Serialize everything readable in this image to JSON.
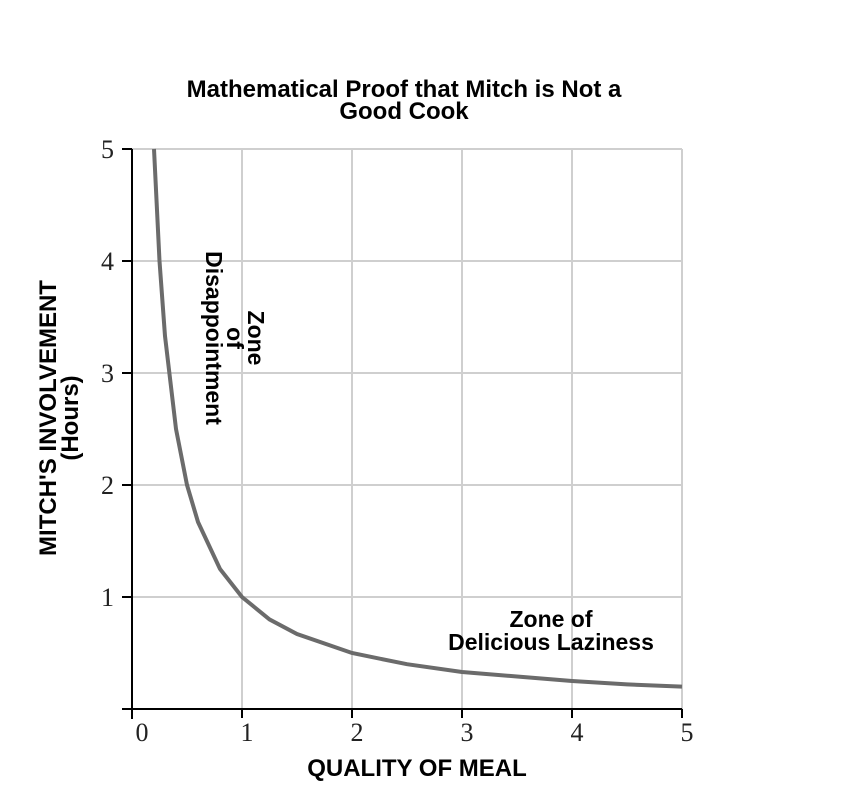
{
  "chart_data": {
    "type": "line",
    "title_lines": [
      "Mathematical Proof that Mitch is Not a",
      "Good Cook"
    ],
    "xlabel": "QUALITY OF MEAL",
    "ylabel_lines": [
      "MITCH'S INVOLVEMENT",
      "(Hours)"
    ],
    "xlim": [
      0,
      5
    ],
    "ylim": [
      0,
      5
    ],
    "xticks": [
      "0",
      "1",
      "2",
      "3",
      "4",
      "5"
    ],
    "yticks": [
      "1",
      "2",
      "3",
      "4",
      "5"
    ],
    "grid": true,
    "series": [
      {
        "color": "#6b6b6b",
        "x": [
          0.2,
          0.25,
          0.3,
          0.4,
          0.5,
          0.6,
          0.8,
          1.0,
          1.25,
          1.5,
          2.0,
          2.5,
          3.0,
          3.5,
          4.0,
          4.5,
          5.0
        ],
        "y": [
          5.0,
          4.0,
          3.33,
          2.5,
          2.0,
          1.67,
          1.25,
          1.0,
          0.8,
          0.67,
          0.5,
          0.4,
          0.33,
          0.29,
          0.25,
          0.22,
          0.2
        ]
      }
    ],
    "annotations": [
      {
        "lines": [
          "Zone",
          "of",
          "Disappointment"
        ]
      },
      {
        "lines": [
          "Zone of",
          "Delicious Laziness"
        ]
      }
    ]
  }
}
